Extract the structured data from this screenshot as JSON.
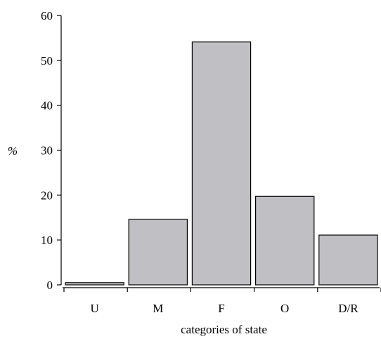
{
  "chart_data": {
    "type": "bar",
    "title": "",
    "categories": [
      "U",
      "M",
      "F",
      "O",
      "D/R"
    ],
    "values": [
      0.5,
      14.6,
      54.1,
      19.7,
      11.1
    ],
    "xlabel": "categories of state",
    "ylabel": "%",
    "ylim": [
      0,
      60
    ],
    "yticks": [
      0,
      10,
      20,
      30,
      40,
      50,
      60
    ],
    "bar_color": "#c0c0c4",
    "grid": false,
    "legend": "none"
  }
}
